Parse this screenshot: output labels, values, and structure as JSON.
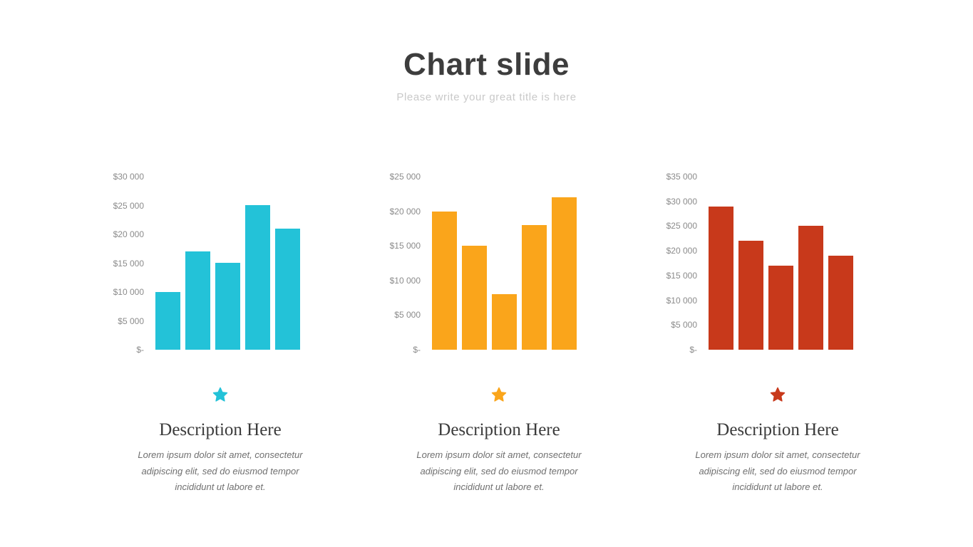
{
  "header": {
    "title": "Chart slide",
    "subtitle": "Please write your great title is here"
  },
  "columns": [
    {
      "accent_color": "#23c2d8",
      "star_icon": "star",
      "description_title": "Description Here",
      "description_text": "Lorem ipsum dolor sit amet, consectetur adipiscing elit, sed do eiusmod tempor incididunt ut labore et."
    },
    {
      "accent_color": "#faa51b",
      "star_icon": "star",
      "description_title": "Description Here",
      "description_text": "Lorem ipsum dolor sit amet, consectetur adipiscing elit, sed do eiusmod tempor incididunt ut labore et."
    },
    {
      "accent_color": "#c8391b",
      "star_icon": "star",
      "description_title": "Description Here",
      "description_text": "Lorem ipsum dolor sit amet, consectetur adipiscing elit, sed do eiusmod tempor incididunt ut labore et."
    }
  ],
  "chart_data": [
    {
      "type": "bar",
      "values": [
        10000,
        17000,
        15000,
        25000,
        21000
      ],
      "ylim": [
        0,
        30000
      ],
      "ytick_labels": [
        "$30 000",
        "$25 000",
        "$20 000",
        "$15 000",
        "$10 000",
        "$5 000",
        "$-"
      ],
      "bar_color": "#23c2d8",
      "grid": false,
      "legend": false
    },
    {
      "type": "bar",
      "values": [
        20000,
        15000,
        8000,
        18000,
        22000
      ],
      "ylim": [
        0,
        25000
      ],
      "ytick_labels": [
        "$25 000",
        "$20 000",
        "$15 000",
        "$10 000",
        "$5 000",
        "$-"
      ],
      "bar_color": "#faa51b",
      "grid": false,
      "legend": false
    },
    {
      "type": "bar",
      "values": [
        29000,
        22000,
        17000,
        25000,
        19000
      ],
      "ylim": [
        0,
        35000
      ],
      "ytick_labels": [
        "$35 000",
        "$30 000",
        "$25 000",
        "$20 000",
        "$15 000",
        "$10 000",
        "$5 000",
        "$-"
      ],
      "bar_color": "#c8391b",
      "grid": false,
      "legend": false
    }
  ]
}
